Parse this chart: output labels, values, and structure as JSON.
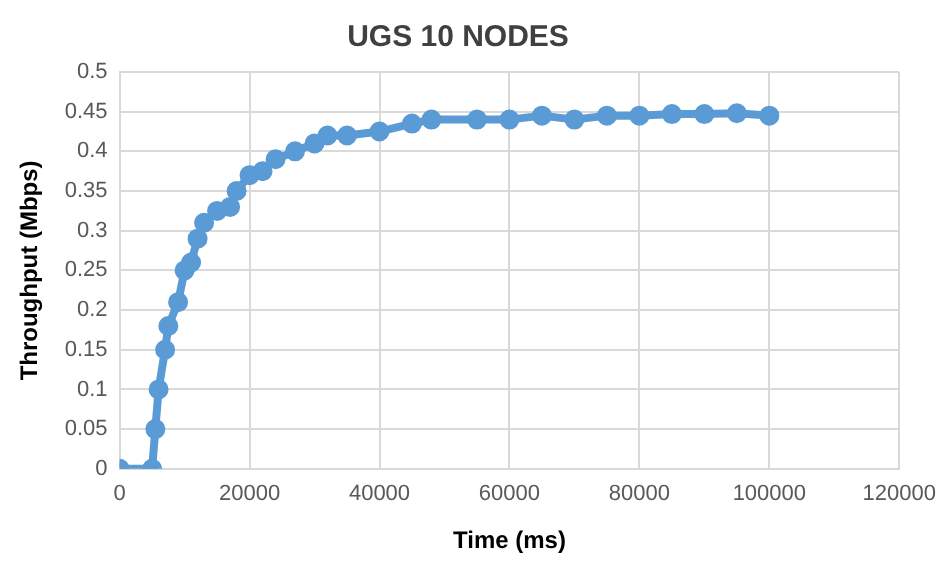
{
  "chart_data": {
    "type": "line",
    "title": "UGS 10 NODES",
    "xlabel": "Time (ms)",
    "ylabel": "Throughput (Mbps)",
    "x": [
      0,
      5000,
      5500,
      6000,
      7000,
      7500,
      9000,
      10000,
      11000,
      12000,
      13000,
      15000,
      17000,
      18000,
      20000,
      22000,
      24000,
      27000,
      30000,
      32000,
      35000,
      40000,
      45000,
      48000,
      55000,
      60000,
      65000,
      70000,
      75000,
      80000,
      85000,
      90000,
      95000,
      100000
    ],
    "series": [
      {
        "color": "#5b9bd5",
        "values": [
          0,
          0,
          0.05,
          0.1,
          0.15,
          0.18,
          0.21,
          0.25,
          0.26,
          0.29,
          0.31,
          0.325,
          0.33,
          0.35,
          0.37,
          0.375,
          0.39,
          0.4,
          0.41,
          0.42,
          0.42,
          0.425,
          0.435,
          0.44,
          0.44,
          0.44,
          0.445,
          0.44,
          0.445,
          0.445,
          0.447,
          0.447,
          0.448,
          0.445
        ]
      }
    ],
    "xlim": [
      0,
      120000
    ],
    "xticks": [
      0,
      20000,
      40000,
      60000,
      80000,
      100000,
      120000
    ],
    "ylim": [
      0,
      0.5
    ],
    "yticks": [
      0,
      0.05,
      0.1,
      0.15,
      0.2,
      0.25,
      0.3,
      0.35,
      0.4,
      0.45,
      0.5
    ],
    "grid": true,
    "marker": "circle",
    "line_style": "solid",
    "legend": false
  }
}
